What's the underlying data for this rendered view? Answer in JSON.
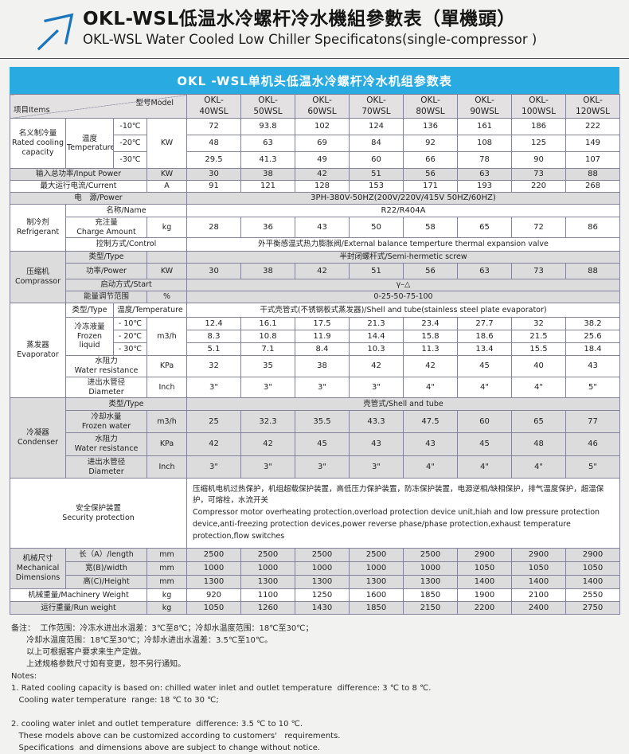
{
  "colors": {
    "banner_blue": "#29abe2",
    "arrow_blue": "#1b75bc",
    "row_shade": "#dcdcdc",
    "header_gray": "#e3e1e1"
  },
  "page": {
    "title_cn": "OKL-WSL低温水冷螺杆冷水機組參數表（單機頭）",
    "title_en": "OKL-WSL Water Cooled Low Chiller Specificatons(single-compressor )"
  },
  "table": {
    "banner": "OKL -WSL单机头低温水冷螺杆冷水机组参数表",
    "corner": {
      "items": "项目Items",
      "model": "型号Model"
    },
    "models": [
      "OKL-\n40WSL",
      "OKL-\n50WSL",
      "OKL-\n60WSL",
      "OKL-\n70WSL",
      "OKL-\n80WSL",
      "OKL-\n90WSL",
      "OKL-\n100WSL",
      "OKL-\n120WSL"
    ]
  },
  "sections": {
    "cooling": {
      "label_cn": "名义制冷量",
      "label_en": "Rated cooling capacity",
      "temp_cn": "温度",
      "temp_en": "Temperature",
      "unit": "KW",
      "rows": [
        {
          "temp": "-10℃",
          "values": [
            "72",
            "93.8",
            "102",
            "124",
            "136",
            "161",
            "186",
            "222"
          ]
        },
        {
          "temp": "-20℃",
          "values": [
            "48",
            "63",
            "69",
            "84",
            "92",
            "108",
            "125",
            "149"
          ]
        },
        {
          "temp": "-30℃",
          "values": [
            "29.5",
            "41.3",
            "49",
            "60",
            "66",
            "78",
            "90",
            "107"
          ]
        }
      ]
    },
    "input_power": {
      "label": "输入总功率/Input Power",
      "unit": "KW",
      "values": [
        "30",
        "38",
        "42",
        "51",
        "56",
        "63",
        "73",
        "88"
      ]
    },
    "current": {
      "label": "最大运行电流/Current",
      "unit": "A",
      "values": [
        "91",
        "121",
        "128",
        "153",
        "171",
        "193",
        "220",
        "268"
      ]
    },
    "power": {
      "label": "电　源/Power",
      "value": "3PH-380V-50HZ(200V/220V/415V  50HZ/60HZ)"
    },
    "refrigerant": {
      "label_cn": "制冷剂",
      "label_en": "Refrigerant",
      "name_label": "名称/Name",
      "name_value": "R22/R404A",
      "charge_label_cn": "充注量",
      "charge_label_en": "Charge Amount",
      "charge_unit": "kg",
      "charge_values": [
        "28",
        "36",
        "43",
        "50",
        "58",
        "65",
        "72",
        "86"
      ],
      "control_label": "控制方式/Control",
      "control_value": "外平衡感温式热力膨胀阀/External balance temperture thermal expansion valve"
    },
    "compressor": {
      "label_cn": "压缩机",
      "label_en": "Comprassor",
      "type_label": "类型/Type",
      "type_value": "半封闭螺杆式/Semi-hermetic screw",
      "power_label": "功率/Power",
      "power_unit": "KW",
      "power_values": [
        "30",
        "38",
        "42",
        "51",
        "56",
        "63",
        "73",
        "88"
      ],
      "start_label": "启动方式/Start",
      "start_value": "γ–△",
      "energy_label": "能量调节范围",
      "energy_unit": "%",
      "energy_value": "0-25-50-75-100"
    },
    "evaporator": {
      "label_cn": "蒸发器",
      "label_en": "Evaporator",
      "type_label": "类型/Type",
      "temp_label": "温度/Temperature",
      "type_value": "干式壳管式(不锈钢板式蒸发器)/Shell and tube(stainless steel plate evaporator)",
      "frozen_label_cn": "冷冻液量",
      "frozen_label_en": "Frozen liquid",
      "frozen_unit": "m3/h",
      "frozen_rows": [
        {
          "temp": "- 10℃",
          "values": [
            "12.4",
            "16.1",
            "17.5",
            "21.3",
            "23.4",
            "27.7",
            "32",
            "38.2"
          ]
        },
        {
          "temp": "- 20℃",
          "values": [
            "8.3",
            "10.8",
            "11.9",
            "14.4",
            "15.8",
            "18.6",
            "21.5",
            "25.6"
          ]
        },
        {
          "temp": "- 30℃",
          "values": [
            "5.1",
            "7.1",
            "8.4",
            "10.3",
            "11.3",
            "13.4",
            "15.5",
            "18.4"
          ]
        }
      ],
      "resistance_label_cn": "水阻力",
      "resistance_label_en": "Water resistance",
      "resistance_unit": "KPa",
      "resistance_values": [
        "32",
        "35",
        "38",
        "42",
        "42",
        "45",
        "40",
        "43"
      ],
      "diameter_label_cn": "进出水管径",
      "diameter_label_en": "Diameter",
      "diameter_unit": "Inch",
      "diameter_values": [
        "3\"",
        "3\"",
        "3\"",
        "3\"",
        "4\"",
        "4\"",
        "4\"",
        "5\""
      ]
    },
    "condenser": {
      "label_cn": "冷凝器",
      "label_en": "Condenser",
      "type_label": "类型/Type",
      "type_value": "壳管式/Shell and tube",
      "water_label_cn": "冷却水量",
      "water_label_en": "Frozen water",
      "water_unit": "m3/h",
      "water_values": [
        "25",
        "32.3",
        "35.5",
        "43.3",
        "47.5",
        "60",
        "65",
        "77"
      ],
      "resistance_label_cn": "水阻力",
      "resistance_label_en": "Water resistance",
      "resistance_unit": "KPa",
      "resistance_values": [
        "42",
        "42",
        "45",
        "43",
        "43",
        "45",
        "48",
        "46"
      ],
      "diameter_label_cn": "进出水管径",
      "diameter_label_en": "Diameter",
      "diameter_unit": "Inch",
      "diameter_values": [
        "3\"",
        "3\"",
        "3\"",
        "3\"",
        "4\"",
        "4\"",
        "4\"",
        "5\""
      ]
    },
    "security": {
      "label_cn": "安全保护装置",
      "label_en": "Security protection",
      "text_cn": "压缩机电机过热保护，机组超载保护装置，高低压力保护装置，防冻保护装置，电源逆相/缺相保护，排气温度保护，超温保护，可熔栓，水流开关",
      "text_en": "Compressor motor overheating protection,overload protection device unit,hiah and low pressure protection device,anti-freezing protection devices,power reverse phase/phase protection,exhaust temperature protection,flow switches"
    },
    "dimensions": {
      "label_cn": "机械尺寸",
      "label_en": "Mechanical Dimensions",
      "rows": [
        {
          "label": "长（A）/length",
          "unit": "mm",
          "values": [
            "2500",
            "2500",
            "2500",
            "2500",
            "2500",
            "2900",
            "2900",
            "2900"
          ]
        },
        {
          "label": "宽(B)/width",
          "unit": "mm",
          "values": [
            "1000",
            "1000",
            "1000",
            "1000",
            "1000",
            "1050",
            "1050",
            "1050"
          ]
        },
        {
          "label": "高(C)/Height",
          "unit": "mm",
          "values": [
            "1300",
            "1300",
            "1300",
            "1300",
            "1300",
            "1400",
            "1400",
            "1400"
          ]
        }
      ]
    },
    "machinery_weight": {
      "label": "机械重量/Machinery Weight",
      "unit": "kg",
      "values": [
        "920",
        "1100",
        "1250",
        "1600",
        "1850",
        "1900",
        "2100",
        "2550"
      ]
    },
    "run_weight": {
      "label": "运行重量/Run weight",
      "unit": "kg",
      "values": [
        "1050",
        "1260",
        "1430",
        "1850",
        "2150",
        "2200",
        "2400",
        "2750"
      ]
    }
  },
  "notes": {
    "lines": [
      "备注：  工作范围：冷冻水进出水温差：3℃至8℃；冷却水温度范围：18℃至30℃；",
      "      冷却水温度范围：18℃至30℃；冷却水进出水温差：3.5℃至10℃。",
      "      以上可根据客户要求来生产定做。",
      "      上述规格参数尺寸如有变更，恕不另行通知。",
      "Notes:",
      "1. Rated cooling capacity is based on: chilled water inlet and outlet temperature  difference: 3 ℃ to 8 ℃.",
      "   Cooling water temperature  range: 18 ℃ to 30 ℃;",
      "",
      "2. cooling water inlet and outlet temperature  difference: 3.5 ℃ to 10 ℃.",
      "   These models above can be customized according to customers'   requirements.",
      "   Specifications  and dimensions above are subject to change without notice."
    ]
  }
}
